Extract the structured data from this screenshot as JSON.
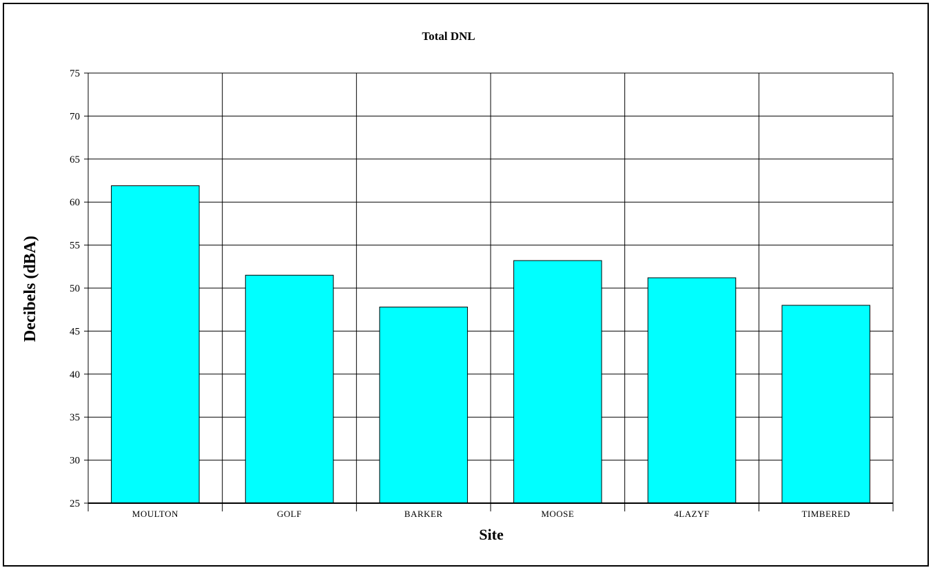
{
  "chart_data": {
    "type": "bar",
    "title": "Total DNL",
    "xlabel": "Site",
    "ylabel": "Decibels (dBA)",
    "categories": [
      "MOULTON",
      "GOLF",
      "BARKER",
      "MOOSE",
      "4LAZYF",
      "TIMBERED"
    ],
    "values": [
      61.9,
      51.5,
      47.8,
      53.2,
      51.2,
      48.0
    ],
    "ylim": [
      25,
      75
    ],
    "yticks": [
      "25",
      "30",
      "35",
      "40",
      "45",
      "50",
      "55",
      "60",
      "65",
      "70",
      "75"
    ],
    "grid": true,
    "bar_color": "#00ffff",
    "bar_border_color": "#000000",
    "gridline_color": "#000000"
  }
}
